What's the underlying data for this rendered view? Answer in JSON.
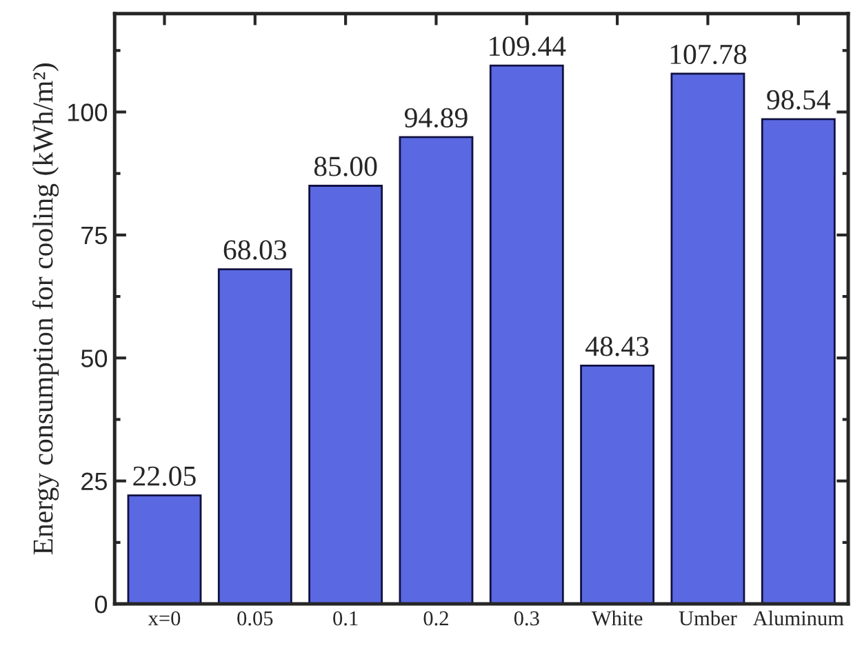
{
  "chart_data": {
    "type": "bar",
    "ylabel": "Energy consumption for cooling (kWh/m²)",
    "categories": [
      "x=0",
      "0.05",
      "0.1",
      "0.2",
      "0.3",
      "White",
      "Umber",
      "Aluminum"
    ],
    "values": [
      22.05,
      68.03,
      85.0,
      94.89,
      109.44,
      48.43,
      107.78,
      98.54
    ],
    "value_labels": [
      "22.05",
      "68.03",
      "85.00",
      "94.89",
      "109.44",
      "48.43",
      "107.78",
      "98.54"
    ],
    "color": "#5a68e2",
    "ylim": [
      0,
      120
    ],
    "yticks": [
      0,
      25,
      50,
      75,
      100
    ],
    "grid": false
  }
}
